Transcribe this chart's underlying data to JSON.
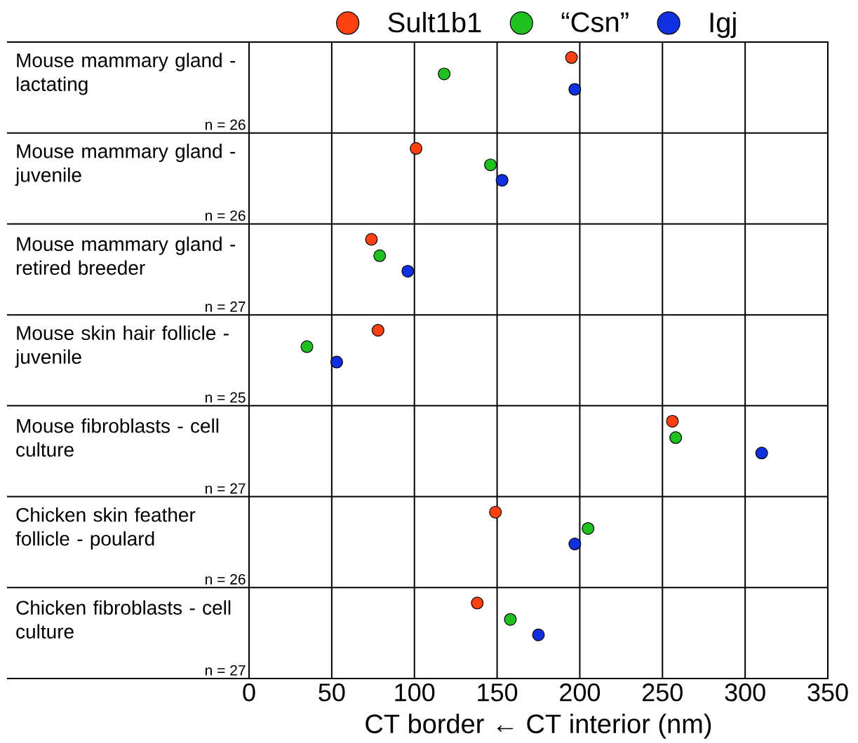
{
  "chart_data": {
    "type": "scatter",
    "orientation": "horizontal",
    "categories": [
      "Mouse mammary gland - lactating",
      "Mouse mammary gland - juvenile",
      "Mouse mammary gland - retired breeder",
      "Mouse skin hair follicle - juvenile",
      "Mouse fibroblasts - cell culture",
      "Chicken skin feather follicle - poulard",
      "Chicken fibroblasts - cell culture"
    ],
    "series": [
      {
        "name": "Sult1b1",
        "color": "#ff4010",
        "values": [
          195,
          101,
          74,
          78,
          256,
          149,
          138
        ]
      },
      {
        "name": "“Csn”",
        "color": "#20c020",
        "values": [
          118,
          146,
          79,
          35,
          258,
          205,
          158
        ]
      },
      {
        "name": "Igj",
        "color": "#1030e0",
        "values": [
          197,
          153,
          96,
          53,
          310,
          197,
          175
        ]
      }
    ],
    "xlim": [
      0,
      350
    ],
    "xticks": [
      0,
      50,
      100,
      150,
      200,
      250,
      300,
      350
    ],
    "xlabel": "CT border ← CT interior (nm)",
    "annotations": [
      "n = 26",
      "n = 26",
      "n = 27",
      "n = 25",
      "n = 27",
      "n = 26",
      "n = 27"
    ],
    "grid": true,
    "legend": "top"
  }
}
